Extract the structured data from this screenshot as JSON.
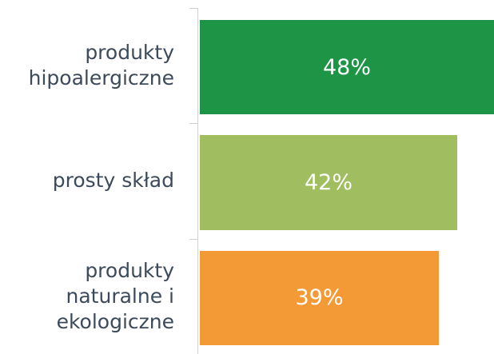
{
  "chart_data": {
    "type": "bar",
    "orientation": "horizontal",
    "categories": [
      "produkty hipoalergiczne",
      "prosty skład",
      "produkty naturalne i ekologiczne"
    ],
    "values": [
      48,
      42,
      39
    ],
    "value_labels": [
      "48%",
      "42%",
      "39%"
    ],
    "colors": [
      "#1e9447",
      "#a0bd5f",
      "#f39a37"
    ]
  }
}
